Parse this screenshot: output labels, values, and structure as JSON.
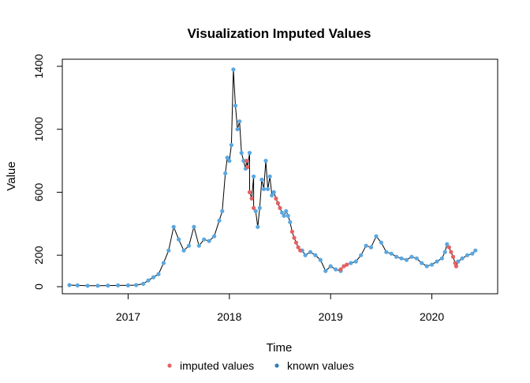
{
  "chart_data": {
    "type": "line",
    "title": "Visualization Imputed Values",
    "xlabel": "Time",
    "ylabel": "Value",
    "xlim": [
      2016.35,
      2020.65
    ],
    "ylim": [
      -45,
      1445
    ],
    "x_ticks": [
      {
        "value": 2017,
        "label": "2017"
      },
      {
        "value": 2018,
        "label": "2018"
      },
      {
        "value": 2019,
        "label": "2019"
      },
      {
        "value": 2020,
        "label": "2020"
      }
    ],
    "y_ticks": [
      {
        "value": 0,
        "label": "0"
      },
      {
        "value": 200,
        "label": "200"
      },
      {
        "value": 600,
        "label": "600"
      },
      {
        "value": 1000,
        "label": "1000"
      },
      {
        "value": 1400,
        "label": "1400"
      }
    ],
    "legend": {
      "position": "bottom",
      "items": [
        {
          "label": "imputed values",
          "color": "#e36262"
        },
        {
          "label": "known values",
          "color": "#2f80b8"
        }
      ]
    },
    "series": [
      {
        "name": "known values",
        "color": "#5aa7e0",
        "x": [
          2016.42,
          2016.5,
          2016.6,
          2016.7,
          2016.8,
          2016.9,
          2017.0,
          2017.08,
          2017.15,
          2017.2,
          2017.25,
          2017.3,
          2017.35,
          2017.4,
          2017.45,
          2017.5,
          2017.55,
          2017.6,
          2017.65,
          2017.7,
          2017.75,
          2017.8,
          2017.85,
          2017.9,
          2017.93,
          2017.96,
          2017.98,
          2018.0,
          2018.02,
          2018.04,
          2018.06,
          2018.08,
          2018.1,
          2018.12,
          2018.14,
          2018.16,
          2018.2,
          2018.24,
          2018.26,
          2018.28,
          2018.3,
          2018.32,
          2018.34,
          2018.36,
          2018.38,
          2018.4,
          2018.42,
          2018.44,
          2018.52,
          2018.54,
          2018.56,
          2018.58,
          2018.6,
          2018.72,
          2018.75,
          2018.8,
          2018.85,
          2018.9,
          2018.95,
          2019.0,
          2019.05,
          2019.1,
          2019.2,
          2019.25,
          2019.3,
          2019.35,
          2019.4,
          2019.45,
          2019.5,
          2019.55,
          2019.6,
          2019.65,
          2019.7,
          2019.75,
          2019.8,
          2019.85,
          2019.9,
          2019.95,
          2020.0,
          2020.05,
          2020.1,
          2020.13,
          2020.15,
          2020.26,
          2020.3,
          2020.35,
          2020.4,
          2020.43
        ],
        "values": [
          10,
          8,
          6,
          6,
          7,
          8,
          8,
          10,
          18,
          40,
          60,
          80,
          150,
          230,
          380,
          300,
          230,
          260,
          380,
          260,
          300,
          290,
          320,
          420,
          480,
          720,
          820,
          800,
          900,
          1380,
          1150,
          1000,
          1050,
          850,
          800,
          750,
          850,
          700,
          480,
          380,
          500,
          680,
          620,
          800,
          620,
          700,
          580,
          600,
          470,
          450,
          480,
          450,
          410,
          230,
          200,
          220,
          200,
          170,
          100,
          130,
          110,
          100,
          150,
          160,
          200,
          260,
          250,
          320,
          280,
          220,
          210,
          190,
          180,
          170,
          190,
          180,
          150,
          130,
          140,
          160,
          180,
          220,
          270,
          160,
          180,
          200,
          210,
          230
        ]
      },
      {
        "name": "imputed values",
        "color": "#e36262",
        "x": [
          2018.17,
          2018.18,
          2018.2,
          2018.22,
          2018.24,
          2018.46,
          2018.48,
          2018.5,
          2018.62,
          2018.64,
          2018.66,
          2018.68,
          2018.7,
          2019.1,
          2019.13,
          2019.16,
          2020.17,
          2020.19,
          2020.21,
          2020.23,
          2020.24
        ],
        "values": [
          800,
          760,
          600,
          560,
          500,
          560,
          530,
          500,
          350,
          310,
          280,
          250,
          230,
          110,
          130,
          140,
          250,
          220,
          190,
          150,
          130
        ]
      }
    ]
  }
}
